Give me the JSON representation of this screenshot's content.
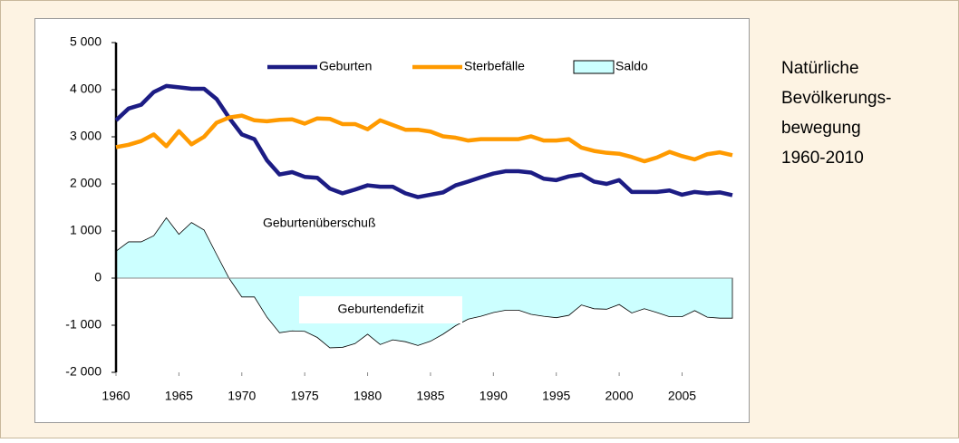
{
  "chart_data": {
    "type": "line",
    "x": [
      1960,
      1961,
      1962,
      1963,
      1964,
      1965,
      1966,
      1967,
      1968,
      1969,
      1970,
      1971,
      1972,
      1973,
      1974,
      1975,
      1976,
      1977,
      1978,
      1979,
      1980,
      1981,
      1982,
      1983,
      1984,
      1985,
      1986,
      1987,
      1988,
      1989,
      1990,
      1991,
      1992,
      1993,
      1994,
      1995,
      1996,
      1997,
      1998,
      1999,
      2000,
      2001,
      2002,
      2003,
      2004,
      2005,
      2006,
      2007,
      2008,
      2009
    ],
    "series": [
      {
        "name": "Geburten",
        "color": "#1c1c84",
        "style": "line",
        "values": [
          3350,
          3600,
          3680,
          3950,
          4080,
          4050,
          4020,
          4020,
          3800,
          3400,
          3050,
          2950,
          2500,
          2200,
          2250,
          2150,
          2130,
          1900,
          1800,
          1880,
          1970,
          1940,
          1940,
          1800,
          1720,
          1770,
          1820,
          1970,
          2050,
          2140,
          2220,
          2270,
          2270,
          2240,
          2110,
          2080,
          2160,
          2200,
          2050,
          2000,
          2080,
          1830,
          1830,
          1830,
          1860,
          1770,
          1830,
          1800,
          1820,
          1760
        ]
      },
      {
        "name": "Sterbefälle",
        "color": "#ff9a00",
        "style": "line",
        "values": [
          2780,
          2830,
          2910,
          3050,
          2800,
          3120,
          2840,
          3000,
          3300,
          3410,
          3450,
          3350,
          3330,
          3360,
          3370,
          3280,
          3390,
          3380,
          3270,
          3270,
          3160,
          3350,
          3250,
          3150,
          3150,
          3110,
          3010,
          2980,
          2920,
          2950,
          2950,
          2950,
          2950,
          3010,
          2920,
          2920,
          2950,
          2770,
          2700,
          2660,
          2640,
          2570,
          2480,
          2560,
          2680,
          2590,
          2520,
          2630,
          2670,
          2610
        ]
      },
      {
        "name": "Saldo",
        "color": "#ccffff",
        "style": "area",
        "values": [
          570,
          770,
          770,
          900,
          1280,
          930,
          1180,
          1020,
          500,
          -10,
          -400,
          -400,
          -830,
          -1160,
          -1120,
          -1130,
          -1260,
          -1480,
          -1470,
          -1390,
          -1190,
          -1410,
          -1310,
          -1350,
          -1430,
          -1340,
          -1190,
          -1010,
          -870,
          -810,
          -730,
          -680,
          -680,
          -770,
          -810,
          -840,
          -790,
          -570,
          -650,
          -660,
          -560,
          -740,
          -650,
          -730,
          -820,
          -820,
          -690,
          -830,
          -850,
          -850
        ]
      }
    ],
    "xlim": [
      1960,
      2009
    ],
    "xticks": [
      1960,
      1965,
      1970,
      1975,
      1980,
      1985,
      1990,
      1995,
      2000,
      2005
    ],
    "ylim": [
      -2000,
      5000
    ],
    "yticks": [
      {
        "value": -2000,
        "label": "-2 000"
      },
      {
        "value": -1000,
        "label": "-1 000"
      },
      0,
      {
        "value": 1000,
        "label": "1 000"
      },
      {
        "value": 2000,
        "label": "2 000"
      },
      {
        "value": 3000,
        "label": "3 000"
      },
      {
        "value": 4000,
        "label": "4 000"
      },
      {
        "value": 5000,
        "label": "5 000"
      }
    ],
    "annotations": [
      "Geburtenüberschuß",
      "Geburtendefizit"
    ],
    "side_title": [
      "Natürliche",
      "Bevölkerungs-",
      "bewegung",
      "1960-2010"
    ],
    "legend": "top",
    "grid": false
  }
}
